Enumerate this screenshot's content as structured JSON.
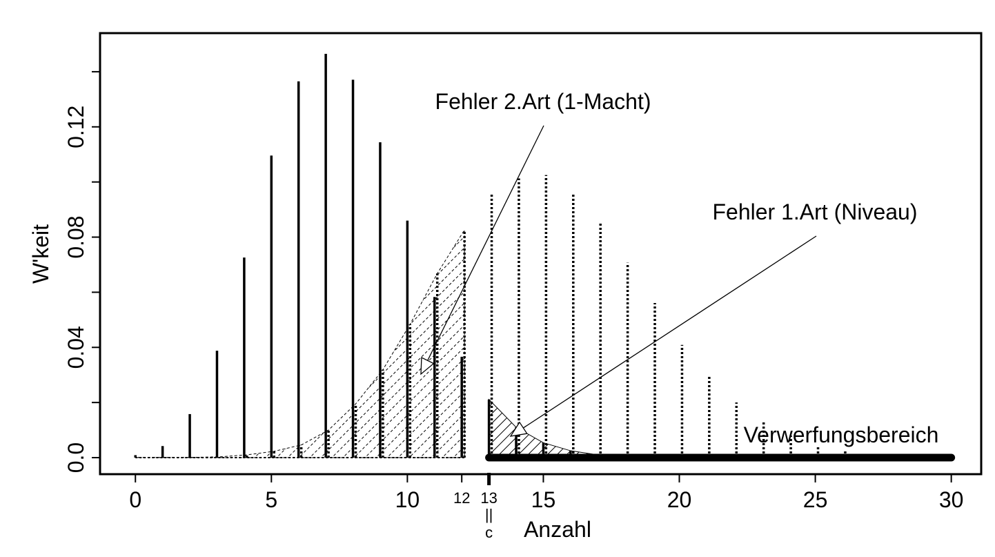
{
  "chart_data": {
    "type": "bar",
    "xlabel": "Anzahl",
    "ylabel": "W'keit",
    "xlim": [
      -1.3,
      31.1
    ],
    "ylim": [
      -0.006,
      0.154
    ],
    "x_ticks": [
      0,
      5,
      10,
      15,
      20,
      25,
      30
    ],
    "x_tick_labels": [
      "0",
      "5",
      "10",
      "15",
      "20",
      "25",
      "30"
    ],
    "y_ticks": [
      0.0,
      0.04,
      0.08,
      0.12
    ],
    "y_tick_labels": [
      "0.0",
      "0.04",
      "0.08",
      "0.12"
    ],
    "extra_ticks": [
      {
        "x": 12,
        "label": "12"
      },
      {
        "x": 13,
        "label": "13"
      }
    ],
    "c_marker": {
      "x": 13,
      "glyph": "||",
      "label": "c"
    },
    "grid": false,
    "series": [
      {
        "style": "solid",
        "x": [
          0,
          1,
          2,
          3,
          4,
          5,
          6,
          7,
          8,
          9,
          10,
          11,
          12,
          13,
          14,
          15,
          16,
          17,
          18,
          19,
          20,
          21,
          22,
          23,
          24,
          25,
          26,
          27,
          28,
          29,
          30
        ],
        "values": [
          0.0009,
          0.0042,
          0.0158,
          0.0388,
          0.0726,
          0.1096,
          0.1365,
          0.1465,
          0.1371,
          0.1144,
          0.086,
          0.0583,
          0.0366,
          0.0211,
          0.011,
          0.0054,
          0.0025,
          0.001,
          0.0004,
          0.0001,
          0,
          0,
          0,
          0,
          0,
          0,
          0,
          0,
          0,
          0,
          0
        ]
      },
      {
        "style": "dotted",
        "x": [
          0,
          1,
          2,
          3,
          4,
          5,
          6,
          7,
          8,
          9,
          10,
          11,
          12,
          13,
          14,
          15,
          16,
          17,
          18,
          19,
          20,
          21,
          22,
          23,
          24,
          25,
          26,
          27,
          28,
          29,
          30
        ],
        "values": [
          0.0001,
          0.0001,
          0.0001,
          0.0003,
          0.001,
          0.0023,
          0.0046,
          0.01,
          0.0195,
          0.0319,
          0.0484,
          0.0668,
          0.0826,
          0.0958,
          0.1013,
          0.1025,
          0.0959,
          0.0849,
          0.0707,
          0.0561,
          0.0409,
          0.0299,
          0.02,
          0.013,
          0.008,
          0.0045,
          0.0025,
          0.0015,
          0.0005,
          0.0002,
          0.0001
        ]
      }
    ],
    "rejection_region": {
      "from": 13,
      "to": 30,
      "label": "Verwerfungsbereich"
    },
    "annotations": [
      {
        "text": "Fehler 2.Art (1-Macht)"
      },
      {
        "text": "Fehler 1.Art (Niveau)"
      }
    ]
  }
}
